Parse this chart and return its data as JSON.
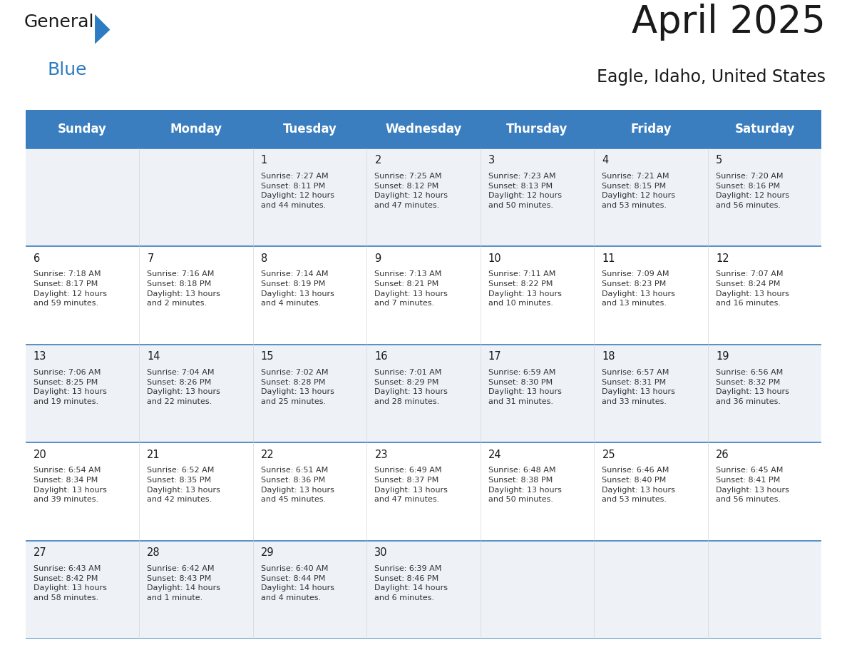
{
  "title": "April 2025",
  "subtitle": "Eagle, Idaho, United States",
  "header_bg_color": "#3A7EBF",
  "header_text_color": "#FFFFFF",
  "header_font_size": 12,
  "day_names": [
    "Sunday",
    "Monday",
    "Tuesday",
    "Wednesday",
    "Thursday",
    "Friday",
    "Saturday"
  ],
  "title_font_size": 38,
  "subtitle_font_size": 17,
  "title_color": "#1a1a1a",
  "subtitle_color": "#1a1a1a",
  "cell_bg_even": "#EEF2F7",
  "cell_bg_odd": "#FFFFFF",
  "cell_border_color": "#3A7EBF",
  "day_number_font_size": 10.5,
  "day_number_color": "#1a1a1a",
  "info_text_color": "#333333",
  "info_font_size": 8.0,
  "logo_color1": "#1a1a1a",
  "logo_color2": "#2D7CC1",
  "logo_font_size": 18,
  "weeks": [
    {
      "days": [
        {
          "day": "",
          "info": ""
        },
        {
          "day": "",
          "info": ""
        },
        {
          "day": "1",
          "info": "Sunrise: 7:27 AM\nSunset: 8:11 PM\nDaylight: 12 hours\nand 44 minutes."
        },
        {
          "day": "2",
          "info": "Sunrise: 7:25 AM\nSunset: 8:12 PM\nDaylight: 12 hours\nand 47 minutes."
        },
        {
          "day": "3",
          "info": "Sunrise: 7:23 AM\nSunset: 8:13 PM\nDaylight: 12 hours\nand 50 minutes."
        },
        {
          "day": "4",
          "info": "Sunrise: 7:21 AM\nSunset: 8:15 PM\nDaylight: 12 hours\nand 53 minutes."
        },
        {
          "day": "5",
          "info": "Sunrise: 7:20 AM\nSunset: 8:16 PM\nDaylight: 12 hours\nand 56 minutes."
        }
      ]
    },
    {
      "days": [
        {
          "day": "6",
          "info": "Sunrise: 7:18 AM\nSunset: 8:17 PM\nDaylight: 12 hours\nand 59 minutes."
        },
        {
          "day": "7",
          "info": "Sunrise: 7:16 AM\nSunset: 8:18 PM\nDaylight: 13 hours\nand 2 minutes."
        },
        {
          "day": "8",
          "info": "Sunrise: 7:14 AM\nSunset: 8:19 PM\nDaylight: 13 hours\nand 4 minutes."
        },
        {
          "day": "9",
          "info": "Sunrise: 7:13 AM\nSunset: 8:21 PM\nDaylight: 13 hours\nand 7 minutes."
        },
        {
          "day": "10",
          "info": "Sunrise: 7:11 AM\nSunset: 8:22 PM\nDaylight: 13 hours\nand 10 minutes."
        },
        {
          "day": "11",
          "info": "Sunrise: 7:09 AM\nSunset: 8:23 PM\nDaylight: 13 hours\nand 13 minutes."
        },
        {
          "day": "12",
          "info": "Sunrise: 7:07 AM\nSunset: 8:24 PM\nDaylight: 13 hours\nand 16 minutes."
        }
      ]
    },
    {
      "days": [
        {
          "day": "13",
          "info": "Sunrise: 7:06 AM\nSunset: 8:25 PM\nDaylight: 13 hours\nand 19 minutes."
        },
        {
          "day": "14",
          "info": "Sunrise: 7:04 AM\nSunset: 8:26 PM\nDaylight: 13 hours\nand 22 minutes."
        },
        {
          "day": "15",
          "info": "Sunrise: 7:02 AM\nSunset: 8:28 PM\nDaylight: 13 hours\nand 25 minutes."
        },
        {
          "day": "16",
          "info": "Sunrise: 7:01 AM\nSunset: 8:29 PM\nDaylight: 13 hours\nand 28 minutes."
        },
        {
          "day": "17",
          "info": "Sunrise: 6:59 AM\nSunset: 8:30 PM\nDaylight: 13 hours\nand 31 minutes."
        },
        {
          "day": "18",
          "info": "Sunrise: 6:57 AM\nSunset: 8:31 PM\nDaylight: 13 hours\nand 33 minutes."
        },
        {
          "day": "19",
          "info": "Sunrise: 6:56 AM\nSunset: 8:32 PM\nDaylight: 13 hours\nand 36 minutes."
        }
      ]
    },
    {
      "days": [
        {
          "day": "20",
          "info": "Sunrise: 6:54 AM\nSunset: 8:34 PM\nDaylight: 13 hours\nand 39 minutes."
        },
        {
          "day": "21",
          "info": "Sunrise: 6:52 AM\nSunset: 8:35 PM\nDaylight: 13 hours\nand 42 minutes."
        },
        {
          "day": "22",
          "info": "Sunrise: 6:51 AM\nSunset: 8:36 PM\nDaylight: 13 hours\nand 45 minutes."
        },
        {
          "day": "23",
          "info": "Sunrise: 6:49 AM\nSunset: 8:37 PM\nDaylight: 13 hours\nand 47 minutes."
        },
        {
          "day": "24",
          "info": "Sunrise: 6:48 AM\nSunset: 8:38 PM\nDaylight: 13 hours\nand 50 minutes."
        },
        {
          "day": "25",
          "info": "Sunrise: 6:46 AM\nSunset: 8:40 PM\nDaylight: 13 hours\nand 53 minutes."
        },
        {
          "day": "26",
          "info": "Sunrise: 6:45 AM\nSunset: 8:41 PM\nDaylight: 13 hours\nand 56 minutes."
        }
      ]
    },
    {
      "days": [
        {
          "day": "27",
          "info": "Sunrise: 6:43 AM\nSunset: 8:42 PM\nDaylight: 13 hours\nand 58 minutes."
        },
        {
          "day": "28",
          "info": "Sunrise: 6:42 AM\nSunset: 8:43 PM\nDaylight: 14 hours\nand 1 minute."
        },
        {
          "day": "29",
          "info": "Sunrise: 6:40 AM\nSunset: 8:44 PM\nDaylight: 14 hours\nand 4 minutes."
        },
        {
          "day": "30",
          "info": "Sunrise: 6:39 AM\nSunset: 8:46 PM\nDaylight: 14 hours\nand 6 minutes."
        },
        {
          "day": "",
          "info": ""
        },
        {
          "day": "",
          "info": ""
        },
        {
          "day": "",
          "info": ""
        }
      ]
    }
  ]
}
